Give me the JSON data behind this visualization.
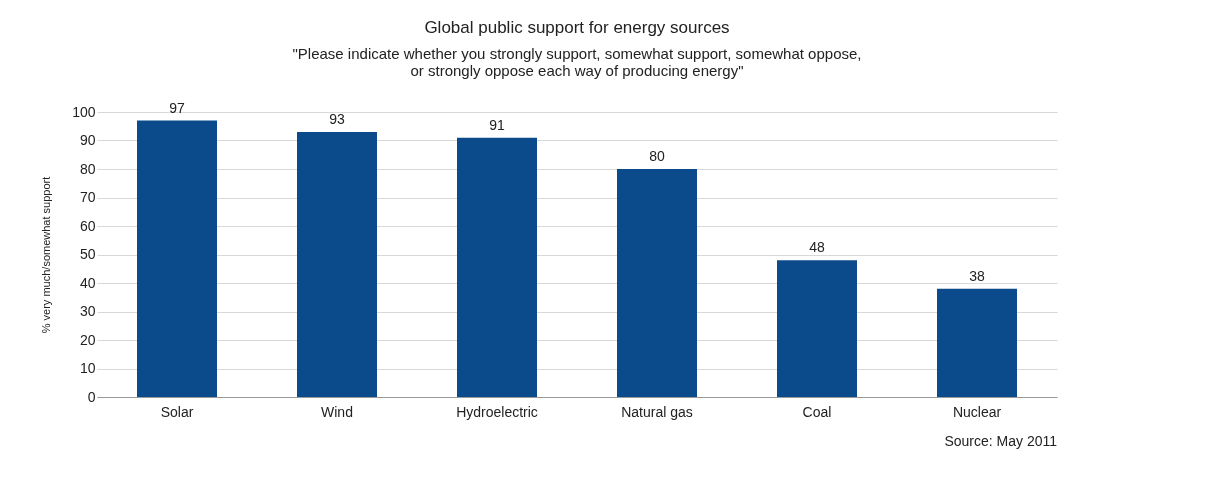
{
  "chart_data": {
    "type": "bar",
    "title": "Global public support for energy sources",
    "subtitle": "\"Please indicate whether you strongly support, somewhat support, somewhat oppose,\nor strongly oppose each way of producing energy\"",
    "ylabel": "% very much/somewhat support",
    "categories": [
      "Solar",
      "Wind",
      "Hydroelectric",
      "Natural gas",
      "Coal",
      "Nuclear"
    ],
    "values": [
      97,
      93,
      91,
      80,
      48,
      38
    ],
    "color": "#0b4a8b",
    "ylim": [
      0,
      100
    ],
    "yticks": [
      0,
      10,
      20,
      30,
      40,
      50,
      60,
      70,
      80,
      90,
      100
    ],
    "grid": "y",
    "data_labels": true,
    "annotations": [
      "Source: May 2011"
    ]
  }
}
